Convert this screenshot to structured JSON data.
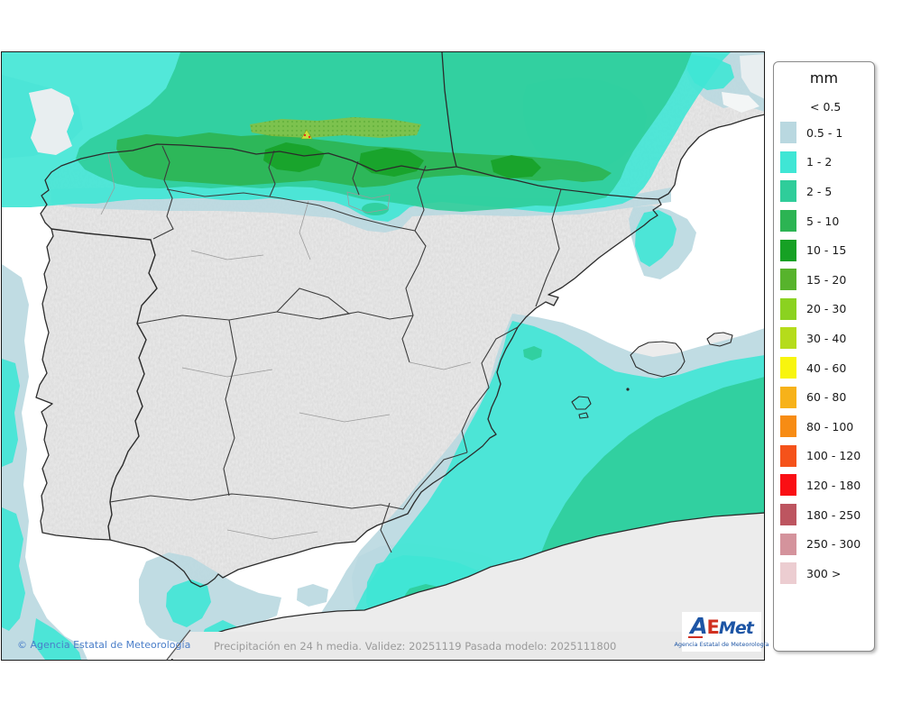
{
  "legend": {
    "title": "mm",
    "first_label": "< 0.5",
    "entries": [
      {
        "label": "0.5 - 1",
        "color": "#b9d8e0"
      },
      {
        "label": "1 - 2",
        "color": "#3fe6d5"
      },
      {
        "label": "2 - 5",
        "color": "#2fcd9a"
      },
      {
        "label": "5 - 10",
        "color": "#2cb453"
      },
      {
        "label": "10 - 15",
        "color": "#16a124"
      },
      {
        "label": "15 - 20",
        "color": "#57b32c"
      },
      {
        "label": "20 - 30",
        "color": "#8bd220"
      },
      {
        "label": "30 - 40",
        "color": "#b5dc1b"
      },
      {
        "label": "40 - 60",
        "color": "#f8f50e"
      },
      {
        "label": "60 - 80",
        "color": "#f7b219"
      },
      {
        "label": "80 - 100",
        "color": "#f78c14"
      },
      {
        "label": "100 - 120",
        "color": "#f5521a"
      },
      {
        "label": "120 - 180",
        "color": "#fa0f14"
      },
      {
        "label": "180 - 250",
        "color": "#bd5560"
      },
      {
        "label": "250 - 300",
        "color": "#d4939c"
      },
      {
        "label": "300 >",
        "color": "#eccdd1"
      }
    ]
  },
  "footer": {
    "copyright": "© Agencia Estatal de Meteorología",
    "info": "Precipitación en 24 h media. Validez: 20251119 Pasada modelo: 2025111800"
  },
  "logo": {
    "a": "A",
    "e": "E",
    "met": "Met",
    "caption": "Agencia Estatal de Meteorología"
  },
  "map_colors": {
    "sea": "#ffffff",
    "land": "#ececec",
    "nosignal_sea": "#e8eef0",
    "lightblue": "#b9d8e0",
    "cyan": "#3fe6d5",
    "teal": "#2fcd9a",
    "green": "#2cb453",
    "green2": "#16a124",
    "olive": "#8fbe3a",
    "footer_bar": "#e9e9e9",
    "border_dark": "#2b2b2b",
    "border_mid": "#3c3c3c",
    "border_light": "#9a9a9a"
  }
}
